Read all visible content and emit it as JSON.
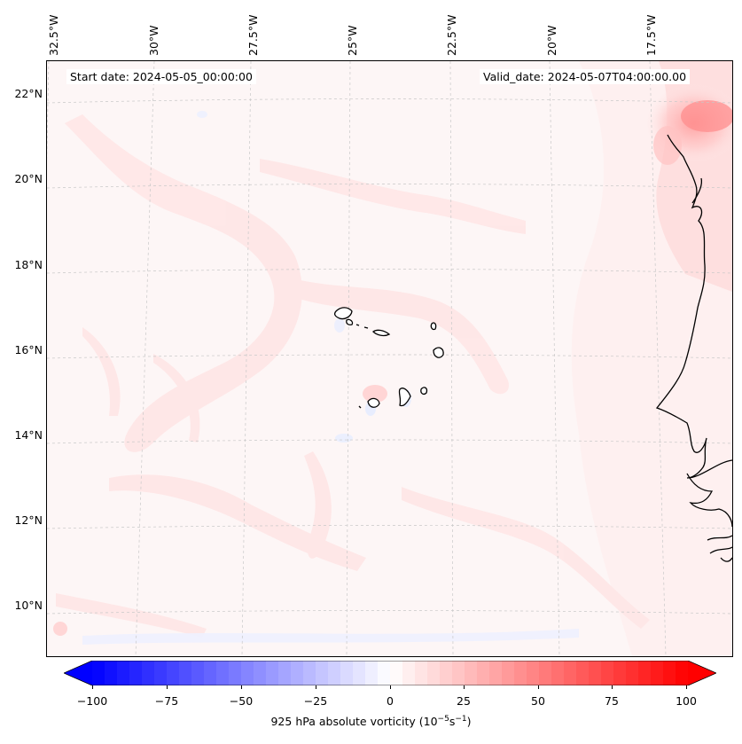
{
  "header": {
    "start_date": "Start date: 2024-05-05_00:00:00",
    "valid_date": "Valid_date: 2024-05-07T04:00:00.00"
  },
  "axes": {
    "longitude_labels": [
      "32.5°W",
      "30°W",
      "27.5°W",
      "25°W",
      "22.5°W",
      "20°W",
      "17.5°W"
    ],
    "latitude_labels": [
      "22°N",
      "20°N",
      "18°N",
      "16°N",
      "14°N",
      "12°N",
      "10°N"
    ]
  },
  "colorbar": {
    "label_prefix": "925 hPa absolute vorticity (10",
    "label_exp1": "−5",
    "label_mid": "s",
    "label_exp2": "−1",
    "label_suffix": ")",
    "min": -100,
    "max": 100,
    "levels": 48,
    "ticks": [
      "−100",
      "−75",
      "−50",
      "−25",
      "0",
      "25",
      "50",
      "75",
      "100"
    ],
    "colors": {
      "negative": "#0000ff",
      "zero": "#ffffff",
      "positive": "#ff0000"
    }
  },
  "colors": {
    "coastline": "#000000",
    "gridline": "#bbbbbb",
    "background_field": "#fdf6f6"
  }
}
